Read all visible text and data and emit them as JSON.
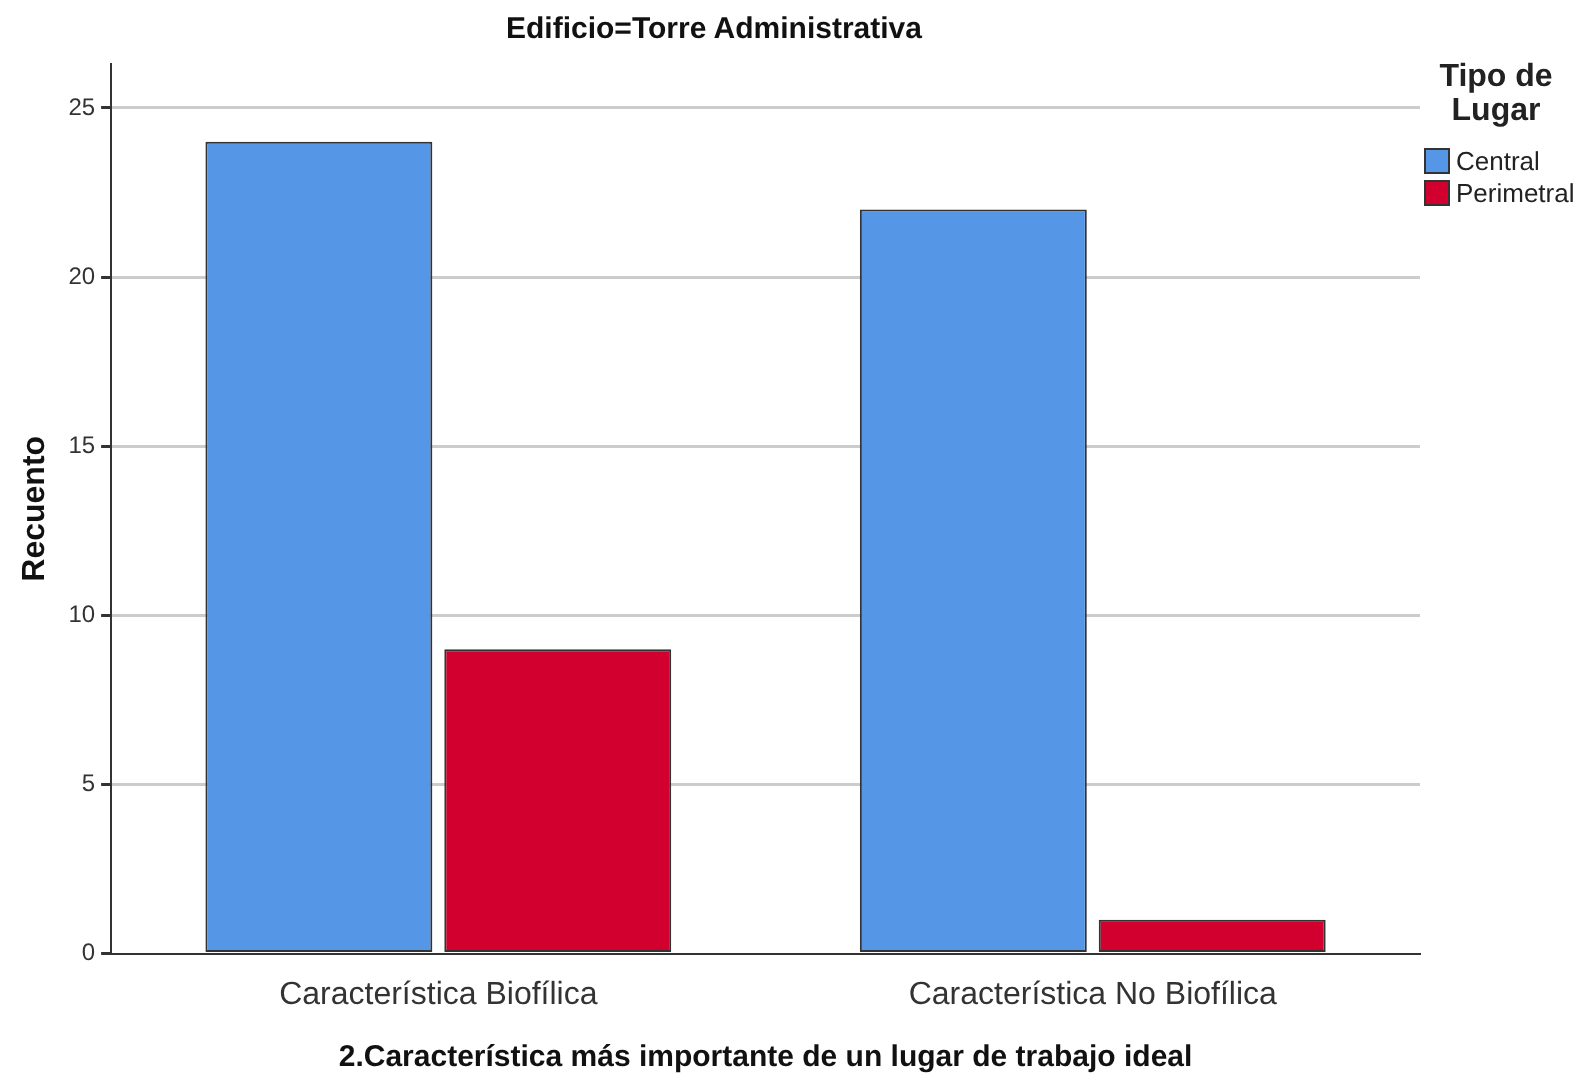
{
  "chart_data": {
    "type": "bar",
    "title": "Edificio=Torre Administrativa",
    "xlabel": "2.Característica más importante de un lugar de trabajo ideal",
    "ylabel": "Recuento",
    "legend_title": "Tipo de Lugar",
    "categories": [
      "Característica Biofílica",
      "Característica No Biofílica"
    ],
    "series": [
      {
        "name": "Central",
        "color": "#5596e6",
        "values": [
          24,
          22
        ]
      },
      {
        "name": "Perimetral",
        "color": "#d2002e",
        "values": [
          9,
          1
        ]
      }
    ],
    "ylim": [
      0,
      26.3
    ],
    "yticks": [
      0,
      5,
      10,
      15,
      20,
      25
    ],
    "grid": "y",
    "legend": "top right"
  }
}
